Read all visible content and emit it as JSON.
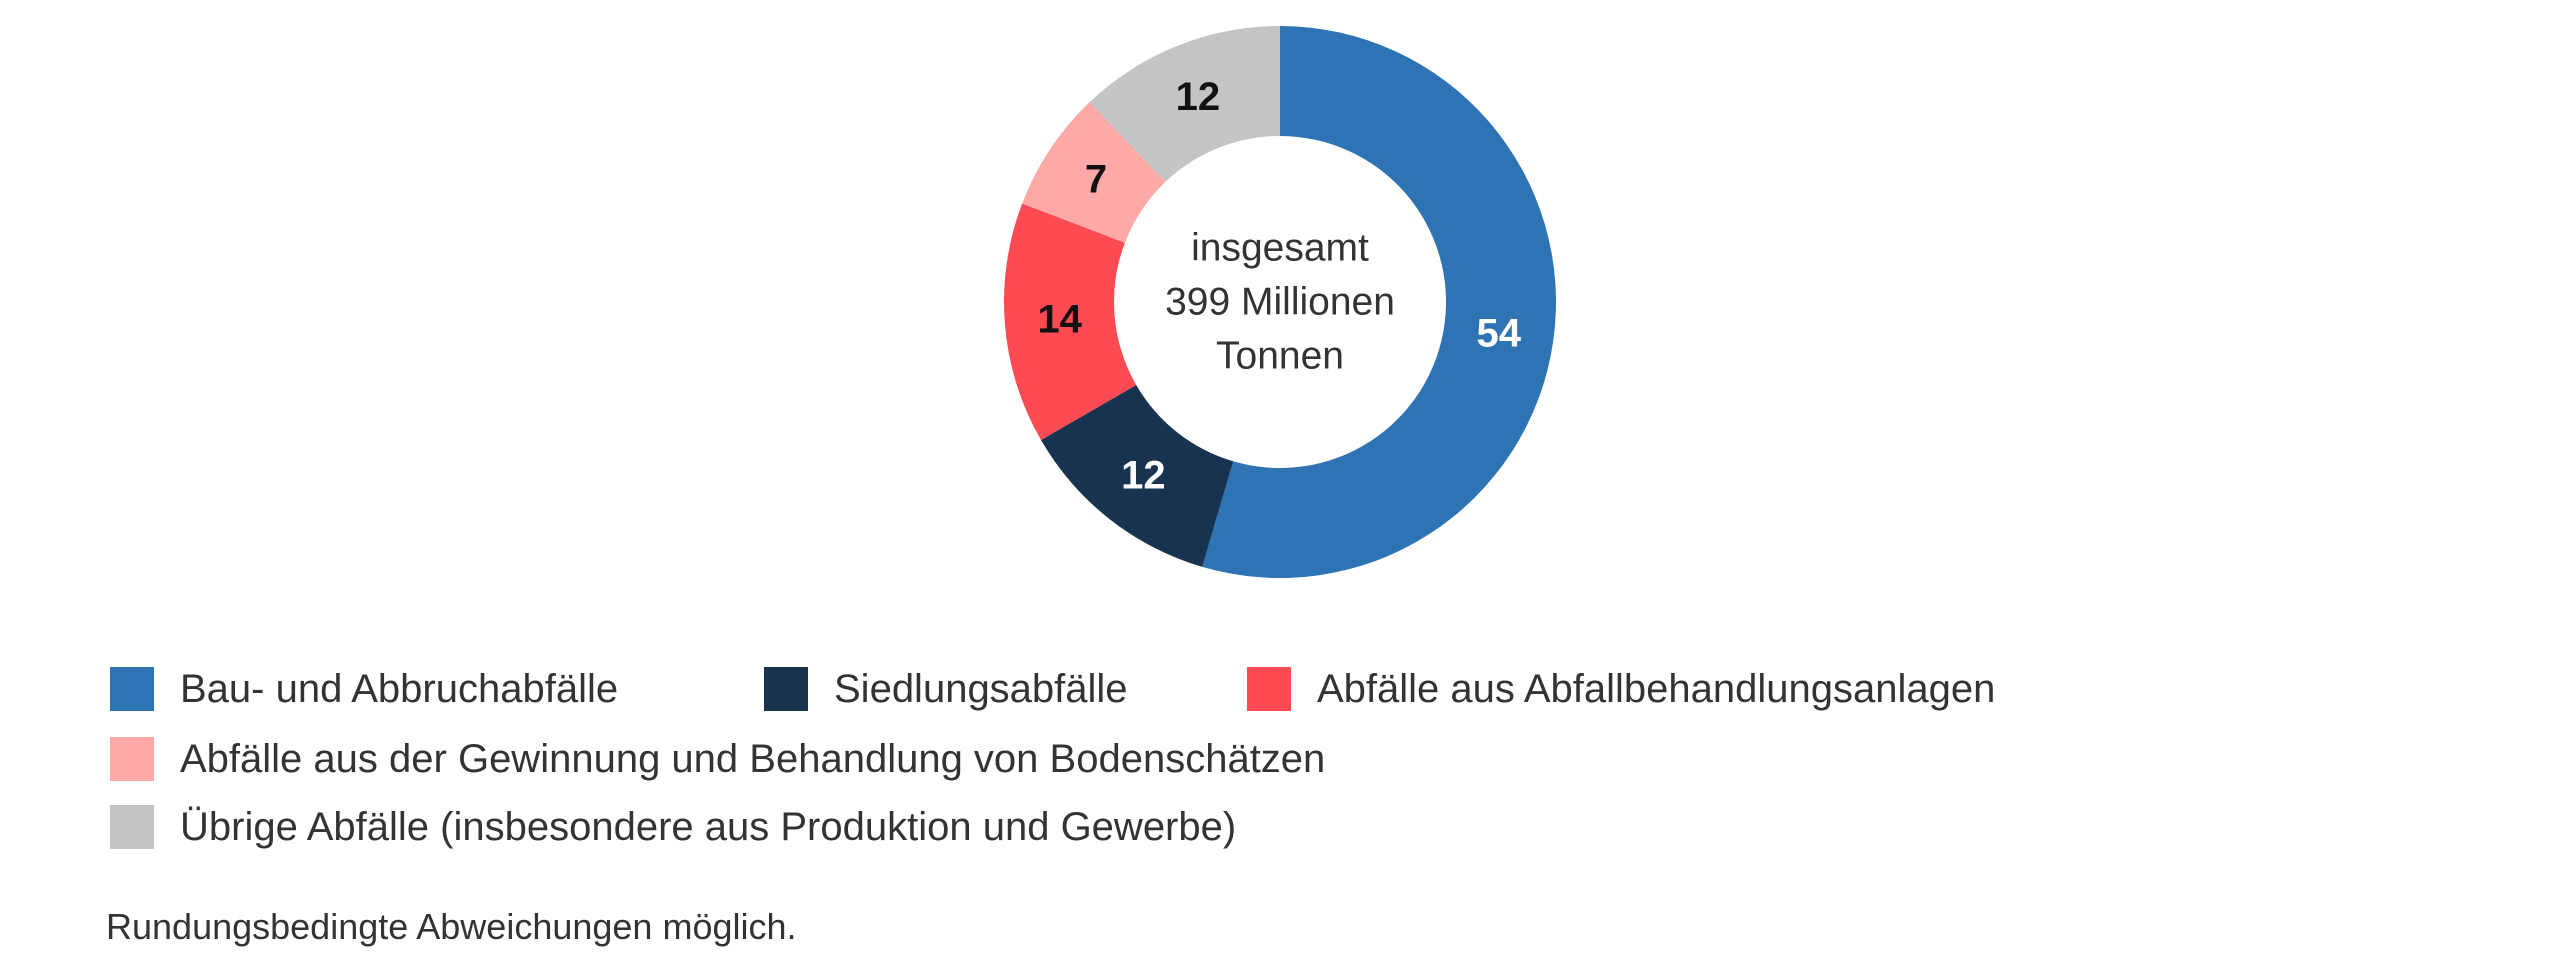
{
  "chart_data": {
    "type": "pie",
    "variant": "donut",
    "unit": "%",
    "center_text": [
      "insgesamt",
      "399 Millionen",
      "Tonnen"
    ],
    "slices": [
      {
        "label": "Bau- und Abbruchabfälle",
        "value": 54,
        "color": "#2e74b5",
        "label_color": "#ffffff"
      },
      {
        "label": "Siedlungsabfälle",
        "value": 12,
        "color": "#17334f",
        "label_color": "#ffffff"
      },
      {
        "label": "Abfälle aus Abfallbehandlungsanlagen",
        "value": 14,
        "color": "#fe4a52",
        "label_color": "#111111"
      },
      {
        "label": "Abfälle aus der Gewinnung und Behandlung von Bodenschätzen",
        "value": 7,
        "color": "#ffa8a8",
        "label_color": "#111111"
      },
      {
        "label": "Übrige Abfälle (insbesondere aus Produktion und Gewerbe)",
        "value": 12,
        "color": "#c4c4c4",
        "label_color": "#111111"
      }
    ],
    "legend_position": "bottom"
  },
  "footnote": "Rundungsbedingte Abweichungen möglich."
}
